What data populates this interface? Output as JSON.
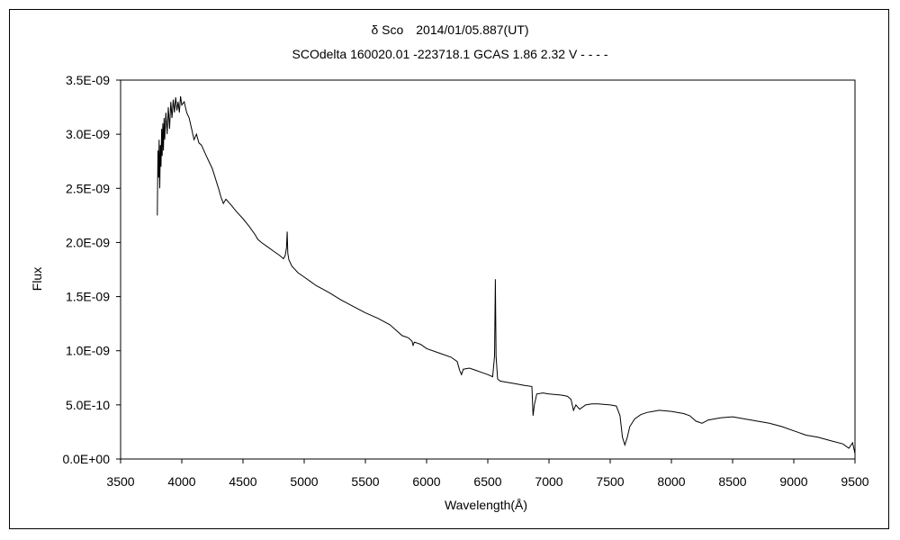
{
  "chart_data": {
    "type": "line",
    "title": "δ Sco　2014/01/05.887(UT)",
    "subtitle": "SCOdelta 160020.01 -223718.1 GCAS 1.86 2.32 V - - - -",
    "xlabel": "Wavelength(Å)",
    "ylabel": "Flux",
    "xlim": [
      3500,
      9500
    ],
    "ylim": [
      0,
      3.5e-09
    ],
    "x_ticks": [
      3500,
      4000,
      4500,
      5000,
      5500,
      6000,
      6500,
      7000,
      7500,
      8000,
      8500,
      9000,
      9500
    ],
    "y_tick_values": [
      0,
      5e-10,
      1e-09,
      1.5e-09,
      2e-09,
      2.5e-09,
      3e-09,
      3.5e-09
    ],
    "y_tick_labels": [
      "0.0E+00",
      "5.0E-10",
      "1.0E-09",
      "1.5E-09",
      "2.0E-09",
      "2.5E-09",
      "3.0E-09",
      "3.5E-09"
    ],
    "grid": false,
    "legend": "none",
    "series": [
      {
        "color": "#000000",
        "points": [
          [
            3800,
            2.25e-09
          ],
          [
            3805,
            2.85e-09
          ],
          [
            3810,
            2.6e-09
          ],
          [
            3815,
            2.95e-09
          ],
          [
            3820,
            2.5e-09
          ],
          [
            3825,
            2.9e-09
          ],
          [
            3830,
            2.7e-09
          ],
          [
            3835,
            3.05e-09
          ],
          [
            3840,
            2.8e-09
          ],
          [
            3845,
            3.1e-09
          ],
          [
            3850,
            2.85e-09
          ],
          [
            3855,
            3.15e-09
          ],
          [
            3860,
            2.95e-09
          ],
          [
            3870,
            3.2e-09
          ],
          [
            3880,
            3e-09
          ],
          [
            3890,
            3.25e-09
          ],
          [
            3900,
            3.05e-09
          ],
          [
            3910,
            3.3e-09
          ],
          [
            3920,
            3.15e-09
          ],
          [
            3930,
            3.32e-09
          ],
          [
            3940,
            3.2e-09
          ],
          [
            3950,
            3.34e-09
          ],
          [
            3960,
            3.22e-09
          ],
          [
            3970,
            3.3e-09
          ],
          [
            3980,
            3.2e-09
          ],
          [
            3990,
            3.35e-09
          ],
          [
            4000,
            3.27e-09
          ],
          [
            4020,
            3.3e-09
          ],
          [
            4040,
            3.2e-09
          ],
          [
            4060,
            3.15e-09
          ],
          [
            4080,
            3.05e-09
          ],
          [
            4100,
            2.95e-09
          ],
          [
            4120,
            3e-09
          ],
          [
            4140,
            2.92e-09
          ],
          [
            4160,
            2.9e-09
          ],
          [
            4200,
            2.8e-09
          ],
          [
            4250,
            2.68e-09
          ],
          [
            4300,
            2.5e-09
          ],
          [
            4320,
            2.42e-09
          ],
          [
            4340,
            2.36e-09
          ],
          [
            4360,
            2.4e-09
          ],
          [
            4400,
            2.35e-09
          ],
          [
            4450,
            2.28e-09
          ],
          [
            4500,
            2.22e-09
          ],
          [
            4550,
            2.15e-09
          ],
          [
            4600,
            2.07e-09
          ],
          [
            4620,
            2.03e-09
          ],
          [
            4650,
            2e-09
          ],
          [
            4700,
            1.96e-09
          ],
          [
            4750,
            1.92e-09
          ],
          [
            4800,
            1.88e-09
          ],
          [
            4830,
            1.85e-09
          ],
          [
            4845,
            1.88e-09
          ],
          [
            4855,
            1.95e-09
          ],
          [
            4861,
            2.1e-09
          ],
          [
            4866,
            1.9e-09
          ],
          [
            4875,
            1.84e-09
          ],
          [
            4900,
            1.78e-09
          ],
          [
            4950,
            1.72e-09
          ],
          [
            5000,
            1.68e-09
          ],
          [
            5050,
            1.64e-09
          ],
          [
            5100,
            1.6e-09
          ],
          [
            5200,
            1.54e-09
          ],
          [
            5300,
            1.47e-09
          ],
          [
            5400,
            1.41e-09
          ],
          [
            5500,
            1.35e-09
          ],
          [
            5600,
            1.3e-09
          ],
          [
            5700,
            1.24e-09
          ],
          [
            5750,
            1.19e-09
          ],
          [
            5800,
            1.14e-09
          ],
          [
            5850,
            1.12e-09
          ],
          [
            5880,
            1.09e-09
          ],
          [
            5890,
            1.05e-09
          ],
          [
            5900,
            1.08e-09
          ],
          [
            5950,
            1.06e-09
          ],
          [
            6000,
            1.02e-09
          ],
          [
            6100,
            9.8e-10
          ],
          [
            6200,
            9.4e-10
          ],
          [
            6250,
            9e-10
          ],
          [
            6270,
            8.2e-10
          ],
          [
            6285,
            7.8e-10
          ],
          [
            6300,
            8.3e-10
          ],
          [
            6350,
            8.4e-10
          ],
          [
            6400,
            8.2e-10
          ],
          [
            6450,
            8e-10
          ],
          [
            6500,
            7.8e-10
          ],
          [
            6540,
            7.6e-10
          ],
          [
            6555,
            9.5e-10
          ],
          [
            6562,
            1.66e-09
          ],
          [
            6568,
            9.5e-10
          ],
          [
            6580,
            7.4e-10
          ],
          [
            6600,
            7.2e-10
          ],
          [
            6650,
            7.1e-10
          ],
          [
            6700,
            7e-10
          ],
          [
            6800,
            6.8e-10
          ],
          [
            6860,
            6.7e-10
          ],
          [
            6870,
            4e-10
          ],
          [
            6880,
            5e-10
          ],
          [
            6900,
            6e-10
          ],
          [
            6950,
            6.1e-10
          ],
          [
            7000,
            6e-10
          ],
          [
            7100,
            5.9e-10
          ],
          [
            7150,
            5.8e-10
          ],
          [
            7180,
            5.5e-10
          ],
          [
            7200,
            4.5e-10
          ],
          [
            7220,
            5e-10
          ],
          [
            7250,
            4.6e-10
          ],
          [
            7300,
            5e-10
          ],
          [
            7350,
            5.1e-10
          ],
          [
            7400,
            5.1e-10
          ],
          [
            7500,
            5e-10
          ],
          [
            7550,
            4.9e-10
          ],
          [
            7580,
            4e-10
          ],
          [
            7600,
            2e-10
          ],
          [
            7620,
            1.3e-10
          ],
          [
            7640,
            2e-10
          ],
          [
            7660,
            3e-10
          ],
          [
            7700,
            3.7e-10
          ],
          [
            7750,
            4.1e-10
          ],
          [
            7800,
            4.3e-10
          ],
          [
            7850,
            4.4e-10
          ],
          [
            7900,
            4.5e-10
          ],
          [
            8000,
            4.4e-10
          ],
          [
            8100,
            4.2e-10
          ],
          [
            8150,
            4e-10
          ],
          [
            8200,
            3.5e-10
          ],
          [
            8250,
            3.3e-10
          ],
          [
            8300,
            3.6e-10
          ],
          [
            8400,
            3.8e-10
          ],
          [
            8500,
            3.9e-10
          ],
          [
            8600,
            3.7e-10
          ],
          [
            8700,
            3.5e-10
          ],
          [
            8800,
            3.3e-10
          ],
          [
            8900,
            3e-10
          ],
          [
            9000,
            2.6e-10
          ],
          [
            9100,
            2.2e-10
          ],
          [
            9200,
            2e-10
          ],
          [
            9300,
            1.7e-10
          ],
          [
            9400,
            1.4e-10
          ],
          [
            9450,
            1e-10
          ],
          [
            9480,
            1.5e-10
          ],
          [
            9500,
            5e-11
          ]
        ]
      }
    ]
  }
}
